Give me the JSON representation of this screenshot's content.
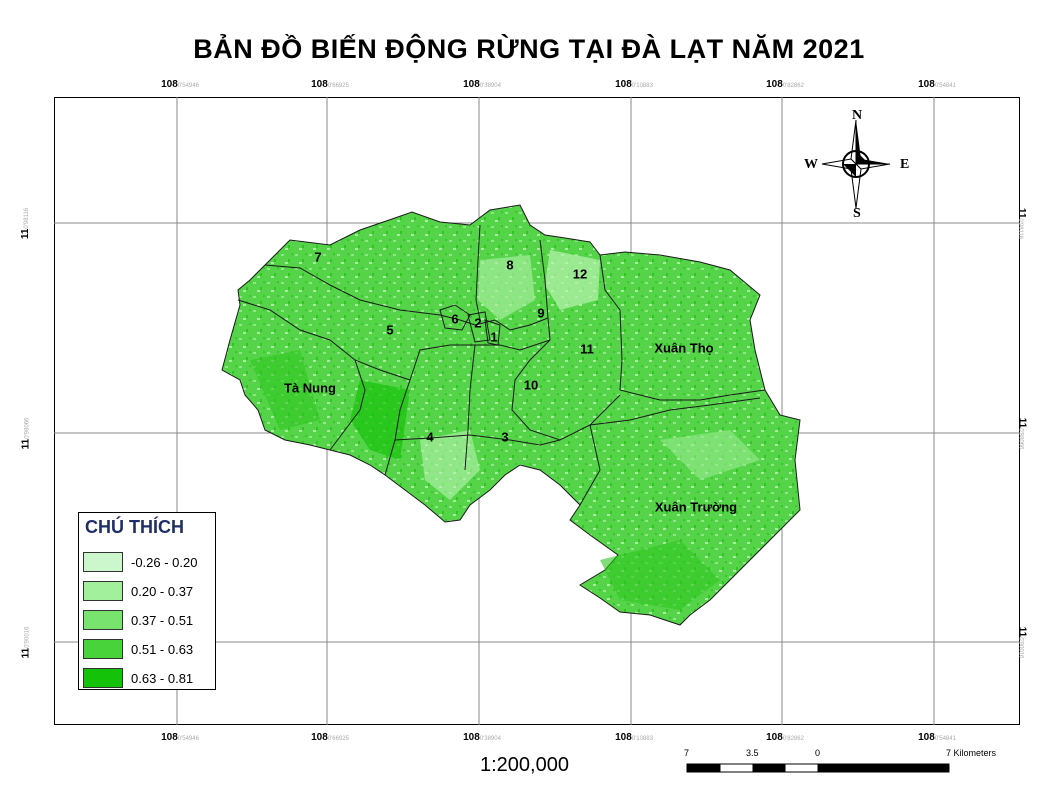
{
  "title": "BẢN ĐỒ BIẾN ĐỘNG RỪNG TẠI ĐÀ LẠT NĂM 2021",
  "scale_text": "1:200,000",
  "grid": {
    "x_ticks": [
      {
        "deg": "108",
        "sub": "0'54946"
      },
      {
        "deg": "108",
        "sub": "0'66925"
      },
      {
        "deg": "108",
        "sub": "0'38904"
      },
      {
        "deg": "108",
        "sub": "0'10883"
      },
      {
        "deg": "108",
        "sub": "0'82862"
      },
      {
        "deg": "108",
        "sub": "0'54841"
      }
    ],
    "y_ticks": [
      {
        "deg": "11",
        "sub": "0'98116"
      },
      {
        "deg": "11",
        "sub": "0'98066"
      },
      {
        "deg": "11",
        "sub": "0'90016"
      }
    ]
  },
  "compass": {
    "n": "N",
    "s": "S",
    "e": "E",
    "w": "W"
  },
  "legend": {
    "title": "CHÚ THÍCH",
    "items": [
      {
        "label": "-0.26 - 0.20",
        "color": "#ccf7cc"
      },
      {
        "label": "0.20 - 0.37",
        "color": "#a2ef9c"
      },
      {
        "label": "0.37 - 0.51",
        "color": "#79e36f"
      },
      {
        "label": "0.51 - 0.63",
        "color": "#48d33b"
      },
      {
        "label": "0.63 - 0.81",
        "color": "#15c20a"
      }
    ]
  },
  "scalebar": {
    "labels": [
      "7",
      "3.5",
      "0",
      "7 Kilometers"
    ]
  },
  "regions": {
    "r1": "1",
    "r2": "2",
    "r3": "3",
    "r4": "4",
    "r5": "5",
    "r6": "6",
    "r7": "7",
    "r8": "8",
    "r9": "9",
    "r10": "10",
    "r11": "11",
    "r12": "12",
    "ta_nung": "Tà Nung",
    "xuan_tho": "Xuân Thọ",
    "xuan_truong": "Xuân Trường"
  },
  "colors": {
    "map_fill": "#55d44a",
    "border": "#1a1a1a",
    "grid": "#888888"
  }
}
